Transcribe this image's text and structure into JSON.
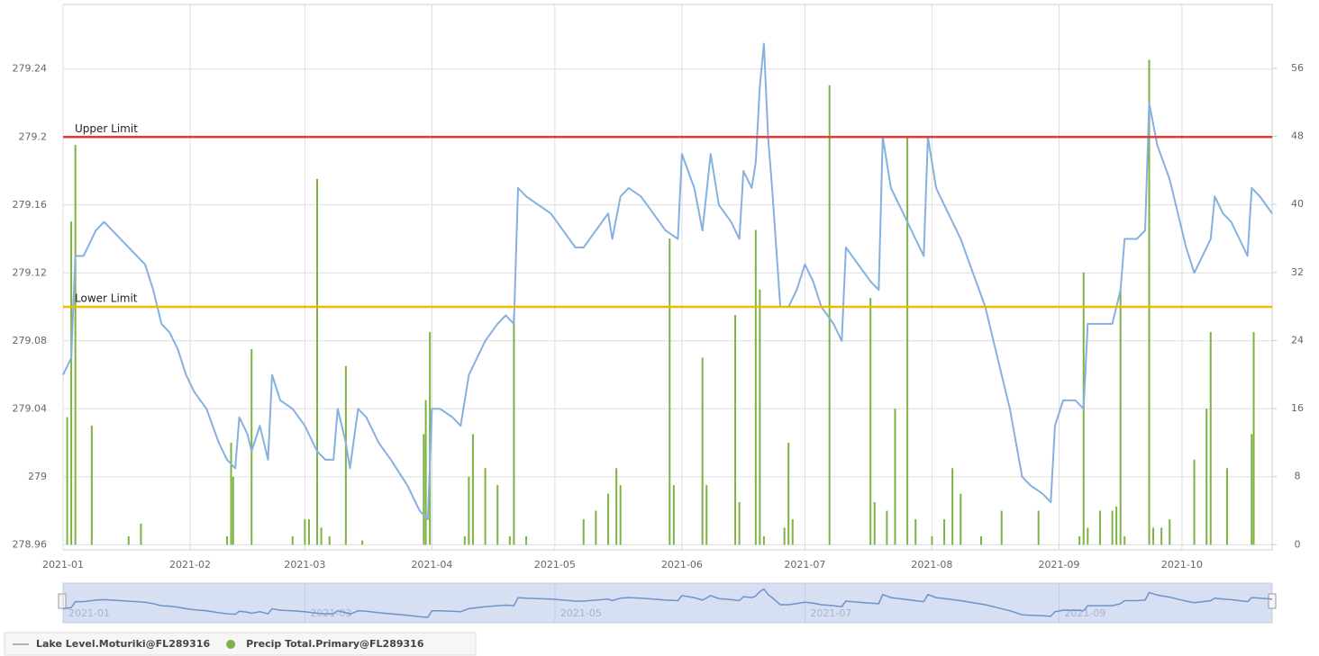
{
  "chart_data": {
    "type": "combo",
    "xlim": [
      0,
      295
    ],
    "xticks": [
      {
        "value": 0,
        "label": "2021-01"
      },
      {
        "value": 31,
        "label": "2021-02"
      },
      {
        "value": 59,
        "label": "2021-03"
      },
      {
        "value": 90,
        "label": "2021-04"
      },
      {
        "value": 120,
        "label": "2021-05"
      },
      {
        "value": 151,
        "label": "2021-06"
      },
      {
        "value": 181,
        "label": "2021-07"
      },
      {
        "value": 212,
        "label": "2021-08"
      },
      {
        "value": 243,
        "label": "2021-09"
      },
      {
        "value": 273,
        "label": "2021-10"
      }
    ],
    "ylim": [
      278.957,
      279.278
    ],
    "yticks": [
      278.96,
      279,
      279.04,
      279.08,
      279.12,
      279.16,
      279.2,
      279.24
    ],
    "y2lim": [
      -0.6,
      63.5
    ],
    "y2ticks": [
      0,
      8,
      16,
      24,
      32,
      40,
      48,
      56
    ],
    "grid": true,
    "reference_lines": [
      {
        "label": "Upper Limit",
        "value": 279.2,
        "color": "#e53935"
      },
      {
        "label": "Lower Limit",
        "value": 279.1,
        "color": "#f5b800"
      }
    ],
    "series": [
      {
        "name": "Lake Level.Moturiki@FL289316",
        "type": "line",
        "color": "#86b0e0",
        "x": [
          0,
          2,
          3,
          5,
          8,
          10,
          14,
          18,
          20,
          22,
          24,
          26,
          28,
          30,
          32,
          35,
          38,
          40,
          42,
          43,
          45,
          46,
          48,
          50,
          51,
          53,
          56,
          59,
          62,
          64,
          66,
          67,
          69,
          70,
          72,
          74,
          77,
          80,
          84,
          87,
          89,
          90,
          92,
          95,
          97,
          99,
          101,
          103,
          106,
          108,
          110,
          111,
          113,
          116,
          119,
          122,
          125,
          127,
          130,
          133,
          134,
          136,
          138,
          141,
          144,
          147,
          150,
          151,
          154,
          156,
          158,
          160,
          163,
          165,
          166,
          168,
          169,
          170,
          171,
          172,
          173,
          175,
          177,
          179,
          181,
          183,
          185,
          188,
          190,
          191,
          194,
          197,
          199,
          200,
          202,
          205,
          208,
          210,
          211,
          213,
          216,
          219,
          222,
          225,
          228,
          231,
          234,
          236,
          239,
          241,
          242,
          244,
          247,
          249,
          250,
          253,
          256,
          258,
          259,
          262,
          264,
          265,
          267,
          270,
          272,
          274,
          276,
          278,
          280,
          281,
          283,
          285,
          287,
          289,
          290,
          292,
          295
        ],
        "values": [
          279.06,
          279.07,
          279.13,
          279.13,
          279.145,
          279.15,
          279.14,
          279.13,
          279.125,
          279.11,
          279.09,
          279.085,
          279.075,
          279.06,
          279.05,
          279.04,
          279.02,
          279.01,
          279.005,
          279.035,
          279.025,
          279.015,
          279.03,
          279.01,
          279.06,
          279.045,
          279.04,
          279.03,
          279.015,
          279.01,
          279.01,
          279.04,
          279.02,
          279.005,
          279.04,
          279.035,
          279.02,
          279.01,
          278.995,
          278.98,
          278.975,
          279.04,
          279.04,
          279.035,
          279.03,
          279.06,
          279.07,
          279.08,
          279.09,
          279.095,
          279.09,
          279.17,
          279.165,
          279.16,
          279.155,
          279.145,
          279.135,
          279.135,
          279.145,
          279.155,
          279.14,
          279.165,
          279.17,
          279.165,
          279.155,
          279.145,
          279.14,
          279.19,
          279.17,
          279.145,
          279.19,
          279.16,
          279.15,
          279.14,
          279.18,
          279.17,
          279.185,
          279.23,
          279.255,
          279.2,
          279.17,
          279.1,
          279.1,
          279.11,
          279.125,
          279.115,
          279.1,
          279.09,
          279.08,
          279.135,
          279.125,
          279.115,
          279.11,
          279.2,
          279.17,
          279.155,
          279.14,
          279.13,
          279.2,
          279.17,
          279.155,
          279.14,
          279.12,
          279.1,
          279.07,
          279.04,
          279.0,
          278.995,
          278.99,
          278.985,
          279.03,
          279.045,
          279.045,
          279.04,
          279.09,
          279.09,
          279.09,
          279.11,
          279.14,
          279.14,
          279.145,
          279.22,
          279.195,
          279.175,
          279.155,
          279.135,
          279.12,
          279.13,
          279.14,
          279.165,
          279.155,
          279.15,
          279.14,
          279.13,
          279.17,
          279.165,
          279.155
        ]
      },
      {
        "name": "Precip Total.Primary@FL289316",
        "type": "bar",
        "axis": "y2",
        "color": "#7cb342",
        "x": [
          1,
          2,
          3,
          7,
          16,
          19,
          40,
          41,
          41.5,
          46,
          56,
          59,
          60,
          62,
          63,
          65,
          69,
          73,
          88,
          88.5,
          89.5,
          98,
          99,
          100,
          103,
          106,
          109,
          110,
          113,
          127,
          130,
          133,
          135,
          136,
          148,
          149,
          156,
          157,
          164,
          165,
          169,
          170,
          171,
          176,
          177,
          178,
          187,
          197,
          198,
          201,
          203,
          206,
          208,
          212,
          215,
          217,
          219,
          224,
          229,
          238,
          248,
          249,
          250,
          253,
          256,
          257,
          258,
          259,
          265,
          266,
          268,
          270,
          276,
          279,
          280,
          284,
          290,
          290.5
        ],
        "values": [
          15,
          38,
          47,
          14,
          1,
          2.5,
          1,
          12,
          8,
          23,
          1,
          3,
          3,
          43,
          2,
          1,
          21,
          0.5,
          13,
          17,
          25,
          1,
          8,
          13,
          9,
          7,
          1,
          27,
          1,
          3,
          4,
          6,
          9,
          7,
          36,
          7,
          22,
          7,
          27,
          5,
          37,
          30,
          1,
          2,
          12,
          3,
          54,
          29,
          5,
          4,
          16,
          48,
          3,
          1,
          3,
          9,
          6,
          1,
          4,
          4,
          1,
          32,
          2,
          4,
          4,
          4.5,
          30,
          1,
          57,
          2,
          2,
          3,
          10,
          16,
          25,
          9,
          13,
          25
        ]
      }
    ],
    "navigator": {
      "xticks": [
        {
          "value": 0,
          "label": "2021-01"
        },
        {
          "value": 59,
          "label": "2021-03"
        },
        {
          "value": 120,
          "label": "2021-05"
        },
        {
          "value": 181,
          "label": "2021-07"
        },
        {
          "value": 243,
          "label": "2021-09"
        }
      ]
    }
  }
}
